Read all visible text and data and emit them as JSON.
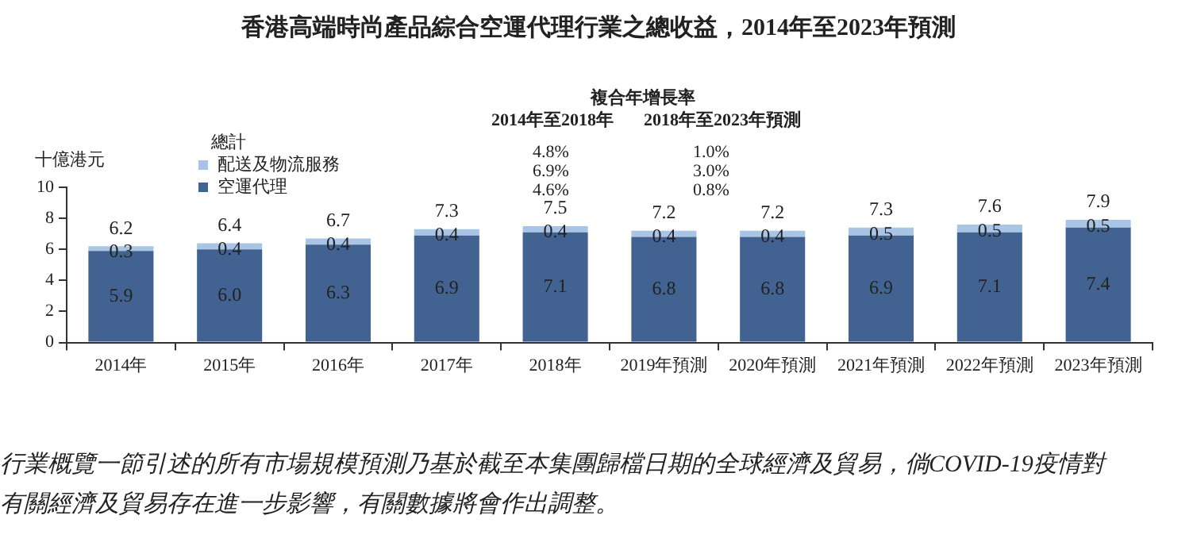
{
  "chart_data": {
    "type": "bar",
    "title": "香港高端時尚產品綜合空運代理行業之總收益，2014年至2023年預測",
    "ylabel": "十億港元",
    "legend_title": "總計",
    "categories": [
      "2014年",
      "2015年",
      "2016年",
      "2017年",
      "2018年",
      "2019年預測",
      "2020年預測",
      "2021年預測",
      "2022年預測",
      "2023年預測"
    ],
    "series": [
      {
        "name": "空運代理",
        "color": "#426391",
        "values": [
          5.9,
          6.0,
          6.3,
          6.9,
          7.1,
          6.8,
          6.8,
          6.9,
          7.1,
          7.4
        ],
        "value_labels": [
          "5.9",
          "6.0",
          "6.3",
          "6.9",
          "7.1",
          "6.8",
          "6.8",
          "6.9",
          "7.1",
          "7.4"
        ]
      },
      {
        "name": "配送及物流服務",
        "color": "#a9c5e6",
        "values": [
          0.3,
          0.4,
          0.4,
          0.4,
          0.4,
          0.4,
          0.4,
          0.5,
          0.5,
          0.5
        ],
        "value_labels": [
          "0.3",
          "0.4",
          "0.4",
          "0.4",
          "0.4",
          "0.4",
          "0.4",
          "0.5",
          "0.5",
          "0.5"
        ]
      }
    ],
    "stacked": true,
    "totals": [
      "6.2",
      "6.4",
      "6.7",
      "7.3",
      "7.5",
      "7.2",
      "7.2",
      "7.3",
      "7.6",
      "7.9"
    ],
    "ylim": [
      0,
      10
    ],
    "yticks": [
      0,
      2,
      4,
      6,
      8,
      10
    ],
    "grid": false,
    "legend": "top left",
    "annotations": [
      "複合年增長率",
      "2014年至2018年",
      "2018年至2023年預測",
      "4.8%",
      "6.9%",
      "4.6%",
      "1.0%",
      "3.0%",
      "0.8%",
      "行業概覽一節引述的所有市場規模預測乃基於截至本集團歸檔日期的全球經濟及貿易，倘COVID-19疫情對",
      "有關經濟及貿易存在進一步影響，有關數據將會作出調整。"
    ]
  }
}
